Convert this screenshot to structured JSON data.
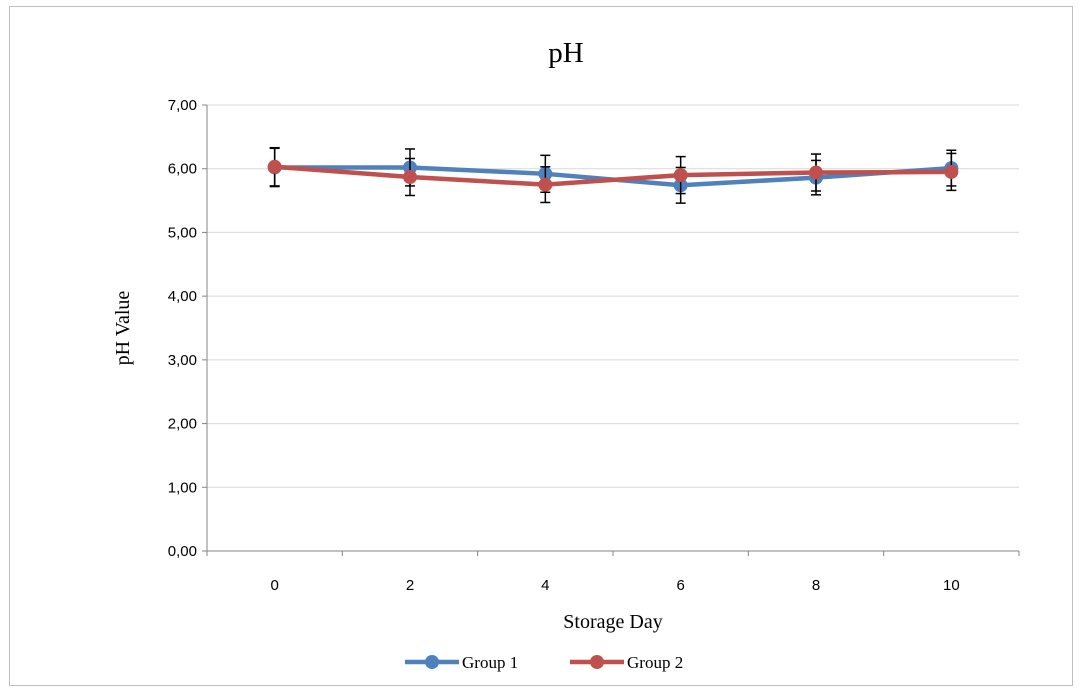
{
  "chart_data": {
    "type": "line",
    "title": "pH",
    "xlabel": "Storage Day",
    "ylabel": "pH Value",
    "categories": [
      "0",
      "2",
      "4",
      "6",
      "8",
      "10"
    ],
    "ylim": [
      0,
      7
    ],
    "y_ticks": [
      "0,00",
      "1,00",
      "2,00",
      "3,00",
      "4,00",
      "5,00",
      "6,00",
      "7,00"
    ],
    "grid": "horizontal",
    "legend_position": "bottom",
    "series": [
      {
        "name": "Group 1",
        "color": "#4f81bd",
        "values": [
          6.02,
          6.02,
          5.92,
          5.74,
          5.86,
          6.01
        ],
        "error": [
          0.3,
          0.29,
          0.29,
          0.28,
          0.27,
          0.28
        ]
      },
      {
        "name": "Group 2",
        "color": "#c0504d",
        "values": [
          6.03,
          5.87,
          5.75,
          5.9,
          5.94,
          5.95
        ],
        "error": [
          0.3,
          0.29,
          0.28,
          0.29,
          0.29,
          0.29
        ]
      }
    ]
  }
}
